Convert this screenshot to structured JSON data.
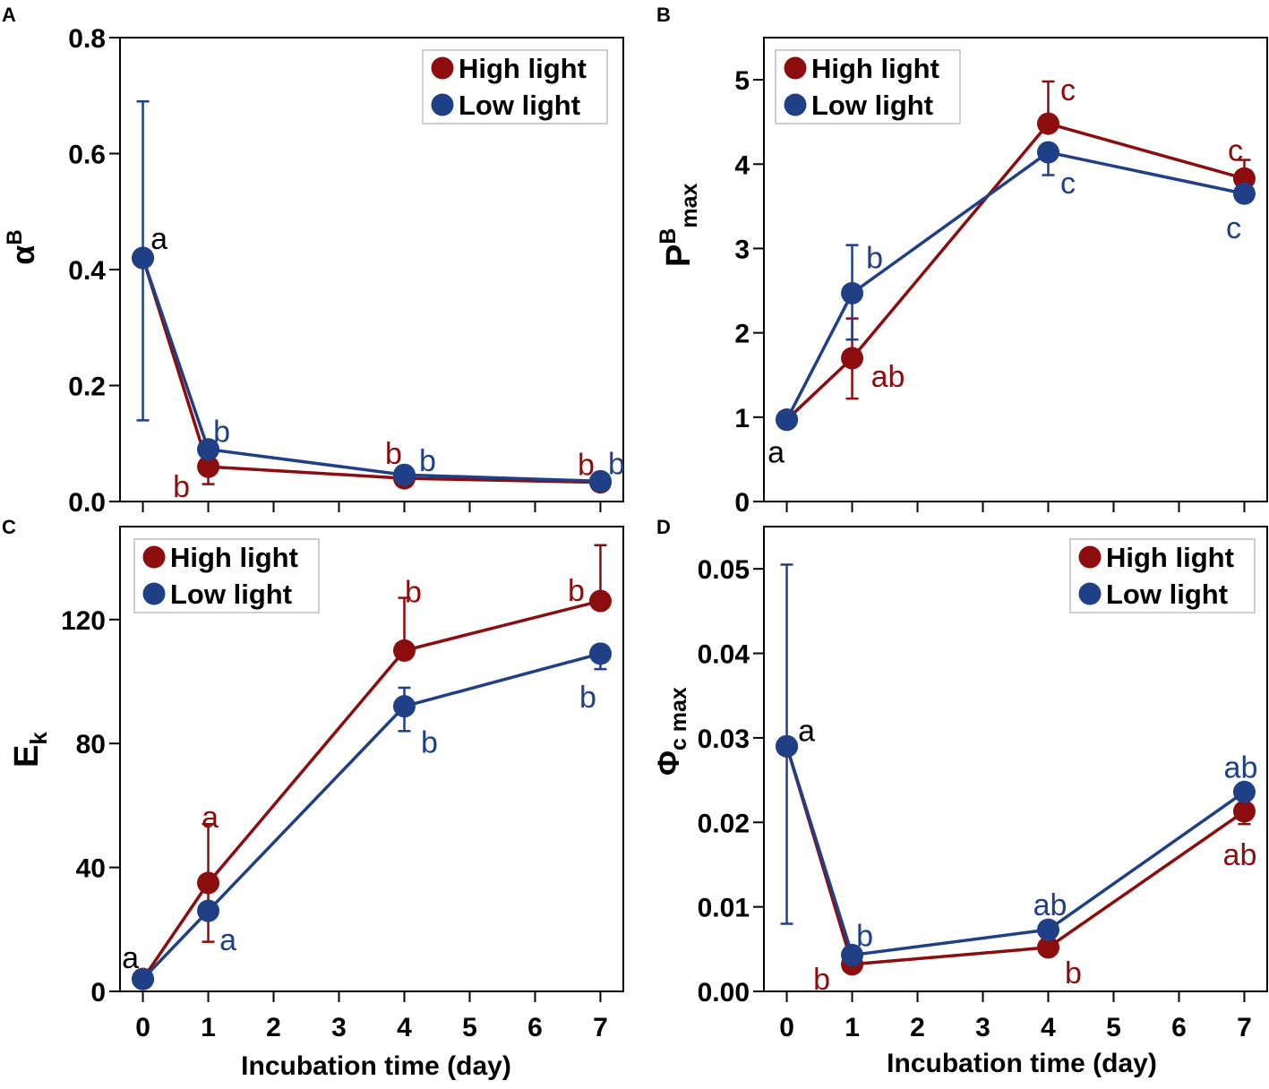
{
  "figure": {
    "xlabel": "Incubation time (day)",
    "colors": {
      "high": "#8b0d0d",
      "low": "#1f3f86",
      "axis": "#000000"
    }
  },
  "chart_data": [
    {
      "panel": "A",
      "type": "line",
      "ylabel": "α",
      "ylabel_sup": "B",
      "ylabel_sub": "",
      "ylim": [
        0,
        0.8
      ],
      "yticks": [
        "0.0",
        "0.2",
        "0.4",
        "0.6",
        "0.8"
      ],
      "ytick_values": [
        0,
        0.2,
        0.4,
        0.6,
        0.8
      ],
      "x": [
        0,
        1,
        4,
        7
      ],
      "xlim": [
        -0.35,
        7.35
      ],
      "xticks": [
        0,
        1,
        2,
        3,
        4,
        5,
        6,
        7
      ],
      "show_xtick_labels": false,
      "show_xlabel": false,
      "legend": {
        "position": "top-right",
        "entries": [
          "High light",
          "Low light"
        ]
      },
      "series": [
        {
          "name": "High light",
          "color_key": "high",
          "values": [
            0.42,
            0.06,
            0.04,
            0.033
          ],
          "err_up": [
            0,
            0,
            0,
            0
          ],
          "err_down": [
            0,
            0.03,
            0,
            0
          ],
          "labels": [
            "",
            "b",
            "b",
            "b"
          ]
        },
        {
          "name": "Low light",
          "color_key": "low",
          "values": [
            0.42,
            0.09,
            0.046,
            0.035
          ],
          "err_up": [
            0.27,
            0,
            0,
            0
          ],
          "err_down": [
            0.28,
            0,
            0,
            0
          ],
          "labels": [
            "a",
            "b",
            "b",
            "b"
          ]
        }
      ]
    },
    {
      "panel": "B",
      "type": "line",
      "ylabel": "P",
      "ylabel_sup": "B",
      "ylabel_sub": "max",
      "ylim": [
        0,
        5.5
      ],
      "yticks": [
        "0",
        "1",
        "2",
        "3",
        "4",
        "5"
      ],
      "ytick_values": [
        0,
        1,
        2,
        3,
        4,
        5
      ],
      "x": [
        0,
        1,
        4,
        7
      ],
      "xlim": [
        -0.35,
        7.35
      ],
      "xticks": [
        0,
        1,
        2,
        3,
        4,
        5,
        6,
        7
      ],
      "show_xtick_labels": false,
      "show_xlabel": false,
      "legend": {
        "position": "top-left",
        "entries": [
          "High light",
          "Low light"
        ]
      },
      "series": [
        {
          "name": "High light",
          "color_key": "high",
          "values": [
            0.97,
            1.7,
            4.48,
            3.83
          ],
          "err_up": [
            0,
            0.47,
            0.5,
            0.22
          ],
          "err_down": [
            0,
            0.48,
            0,
            0
          ],
          "labels": [
            "",
            "ab",
            "c",
            "c"
          ]
        },
        {
          "name": "Low light",
          "color_key": "low",
          "values": [
            0.97,
            2.47,
            4.14,
            3.65
          ],
          "err_up": [
            0,
            0.57,
            0,
            0
          ],
          "err_down": [
            0,
            0.55,
            0.27,
            0
          ],
          "labels": [
            "a",
            "b",
            "c",
            "c"
          ]
        }
      ]
    },
    {
      "panel": "C",
      "type": "line",
      "ylabel": "E",
      "ylabel_sup": "",
      "ylabel_sub": "k",
      "ylim": [
        0,
        150
      ],
      "yticks": [
        "0",
        "40",
        "80",
        "120"
      ],
      "ytick_values": [
        0,
        40,
        80,
        120
      ],
      "x": [
        0,
        1,
        4,
        7
      ],
      "xlim": [
        -0.35,
        7.35
      ],
      "xticks": [
        0,
        1,
        2,
        3,
        4,
        5,
        6,
        7
      ],
      "xtick_labels": [
        "0",
        "1",
        "2",
        "3",
        "4",
        "5",
        "6",
        "7"
      ],
      "show_xtick_labels": true,
      "show_xlabel": true,
      "legend": {
        "position": "top-left",
        "entries": [
          "High light",
          "Low light"
        ]
      },
      "series": [
        {
          "name": "High light",
          "color_key": "high",
          "values": [
            4,
            35,
            110,
            126
          ],
          "err_up": [
            0,
            19,
            17,
            18
          ],
          "err_down": [
            0,
            19,
            0,
            0
          ],
          "labels": [
            "",
            "a",
            "b",
            "b"
          ]
        },
        {
          "name": "Low light",
          "color_key": "low",
          "values": [
            4,
            26,
            92,
            109
          ],
          "err_up": [
            0,
            0,
            6,
            0
          ],
          "err_down": [
            0,
            0,
            8,
            5
          ],
          "labels": [
            "a",
            "a",
            "b",
            "b"
          ]
        }
      ]
    },
    {
      "panel": "D",
      "type": "line",
      "ylabel": "Φ",
      "ylabel_sup": "",
      "ylabel_sub": "c max",
      "ylim": [
        0,
        0.055
      ],
      "yticks": [
        "0.00",
        "0.01",
        "0.02",
        "0.03",
        "0.04",
        "0.05"
      ],
      "ytick_values": [
        0,
        0.01,
        0.02,
        0.03,
        0.04,
        0.05
      ],
      "x": [
        0,
        1,
        4,
        7
      ],
      "xlim": [
        -0.35,
        7.35
      ],
      "xticks": [
        0,
        1,
        2,
        3,
        4,
        5,
        6,
        7
      ],
      "xtick_labels": [
        "0",
        "1",
        "2",
        "3",
        "4",
        "5",
        "6",
        "7"
      ],
      "show_xtick_labels": true,
      "show_xlabel": true,
      "legend": {
        "position": "top-right",
        "entries": [
          "High light",
          "Low light"
        ]
      },
      "series": [
        {
          "name": "High light",
          "color_key": "high",
          "values": [
            0.029,
            0.0032,
            0.0052,
            0.0213
          ],
          "err_up": [
            0,
            0,
            0,
            0
          ],
          "err_down": [
            0,
            0,
            0,
            0.0015
          ],
          "labels": [
            "",
            "b",
            "b",
            "ab"
          ]
        },
        {
          "name": "Low light",
          "color_key": "low",
          "values": [
            0.029,
            0.0043,
            0.0073,
            0.0236
          ],
          "err_up": [
            0.0215,
            0,
            0,
            0
          ],
          "err_down": [
            0.021,
            0,
            0,
            0
          ],
          "labels": [
            "a",
            "b",
            "ab",
            "ab"
          ]
        }
      ]
    }
  ]
}
